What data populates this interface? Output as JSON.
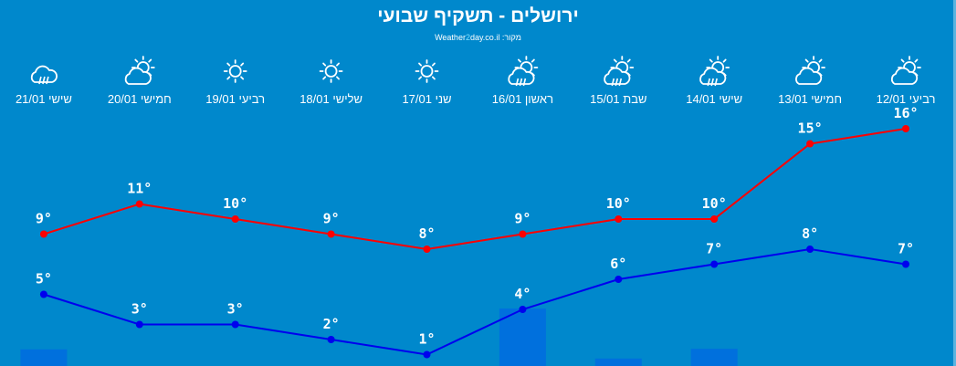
{
  "header": {
    "title": "ירושלים - תשקיף שבועי",
    "source_label": "מקור:",
    "source_site_prefix": "Weather",
    "source_site_mid": "2",
    "source_site_suffix": "day.co.il"
  },
  "colors": {
    "background": "#0088cc",
    "high_line": "#ff0000",
    "low_line": "#0000ee",
    "precip_bar": "#0070dd",
    "text": "#ffffff"
  },
  "chart_data": {
    "type": "line",
    "direction": "right-to-left",
    "categories": [
      "רביעי 12/01",
      "חמישי 13/01",
      "שישי 14/01",
      "שבת 15/01",
      "ראשון 16/01",
      "שני 17/01",
      "שלישי 18/01",
      "רביעי 19/01",
      "חמישי 20/01",
      "שישי 21/01"
    ],
    "icons": [
      "partly-cloudy-icon",
      "partly-cloudy-icon",
      "sun-cloud-rain-icon",
      "sun-cloud-rain-icon",
      "sun-cloud-rain-icon",
      "sun-icon",
      "sun-icon",
      "sun-icon",
      "partly-cloudy-icon",
      "cloud-rain-icon"
    ],
    "series": [
      {
        "values": [
          16,
          15,
          10,
          10,
          9,
          8,
          9,
          10,
          11,
          9
        ],
        "color": "#ff0000"
      },
      {
        "values": [
          7,
          8,
          7,
          6,
          4,
          1,
          2,
          3,
          3,
          5
        ],
        "color": "#0000ee"
      }
    ],
    "precip_relative": [
      0,
      0,
      0.3,
      0.13,
      1,
      0,
      0,
      0,
      0,
      0.29
    ],
    "unit_suffix": "°",
    "grid": false,
    "legend": "none"
  }
}
